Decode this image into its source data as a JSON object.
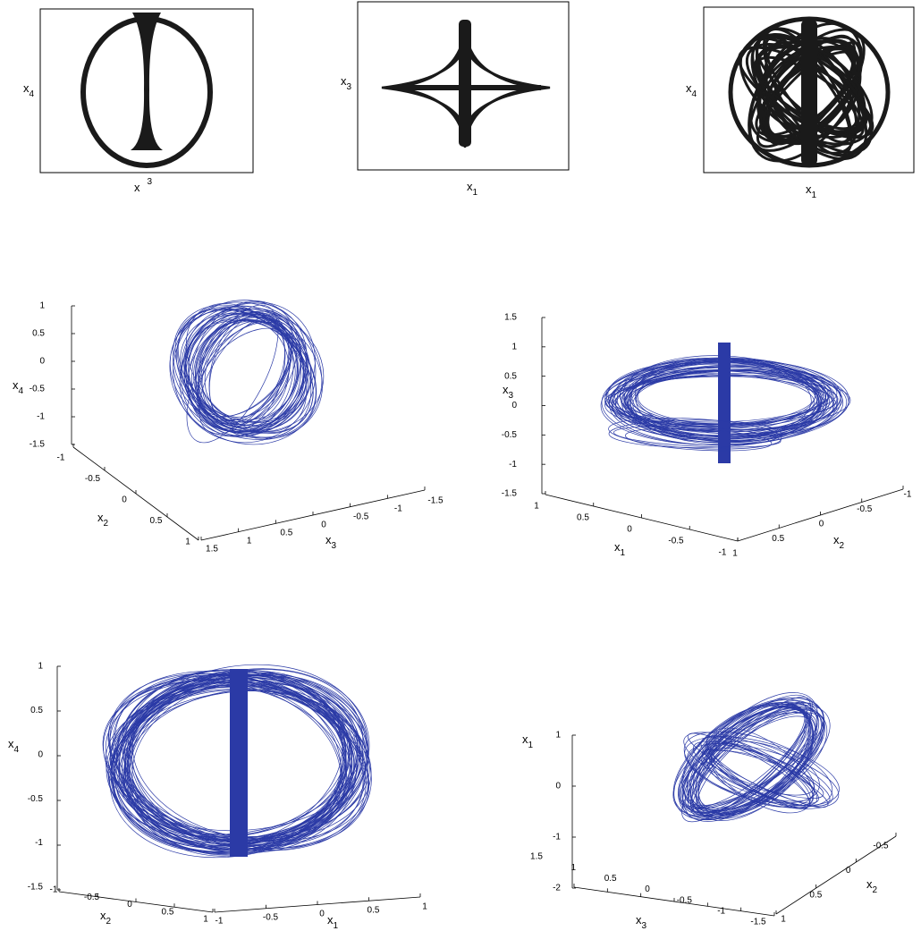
{
  "panels_2d": [
    {
      "ylabel": {
        "base": "x",
        "sub": "4"
      },
      "xlabel": {
        "base": "x",
        "sup": "3"
      }
    },
    {
      "ylabel": {
        "base": "x",
        "sub": "3"
      },
      "xlabel": {
        "base": "x",
        "sub": "1"
      }
    },
    {
      "ylabel": {
        "base": "x",
        "sub": "4"
      },
      "xlabel": {
        "base": "x",
        "sub": "1"
      }
    }
  ],
  "panels_3d": [
    {
      "vertical": {
        "label": {
          "base": "x",
          "sub": "4"
        },
        "ticks": [
          1,
          0.5,
          0,
          -0.5,
          -1,
          -1.5
        ]
      },
      "depth": {
        "label": {
          "base": "x",
          "sub": "2"
        },
        "ticks": [
          -1,
          -0.5,
          0,
          0.5,
          1
        ]
      },
      "width": {
        "label": {
          "base": "x",
          "sub": "3"
        },
        "ticks": [
          1.5,
          1,
          0.5,
          0,
          -0.5,
          -1,
          -1.5
        ]
      }
    },
    {
      "vertical": {
        "label": {
          "base": "x",
          "sub": "3"
        },
        "ticks": [
          1.5,
          1,
          0.5,
          0,
          -0.5,
          -1,
          -1.5
        ]
      },
      "depth": {
        "label": {
          "base": "x",
          "sub": "1"
        },
        "ticks": [
          1,
          0.5,
          0,
          -0.5,
          -1
        ]
      },
      "width": {
        "label": {
          "base": "x",
          "sub": "2"
        },
        "ticks": [
          1,
          0.5,
          0,
          -0.5,
          -1
        ]
      }
    },
    {
      "vertical": {
        "label": {
          "base": "x",
          "sub": "4"
        },
        "ticks": [
          1,
          0.5,
          0,
          -0.5,
          -1,
          -1.5
        ]
      },
      "depth": {
        "label": {
          "base": "x",
          "sub": "2"
        },
        "ticks": [
          -1,
          -0.5,
          0,
          0.5,
          1
        ]
      },
      "width": {
        "label": {
          "base": "x",
          "sub": "1"
        },
        "ticks": [
          -1,
          -0.5,
          0,
          0.5,
          1
        ]
      }
    },
    {
      "vertical": {
        "label": {
          "base": "x",
          "sub": "1"
        },
        "ticks": [
          1,
          0,
          -1,
          -2
        ]
      },
      "depth": {
        "label": {
          "base": "x",
          "sub": "3"
        },
        "ticks": [
          1.5,
          1,
          0.5,
          0,
          -0.5,
          -1,
          -1.5
        ]
      },
      "width": {
        "label": {
          "base": "x",
          "sub": "2"
        },
        "ticks": [
          1,
          0.5,
          0,
          -0.5
        ]
      }
    }
  ]
}
